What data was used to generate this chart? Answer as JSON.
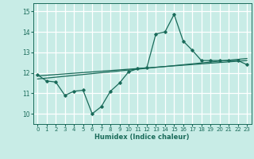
{
  "xlabel": "Humidex (Indice chaleur)",
  "xlim": [
    -0.5,
    23.5
  ],
  "ylim": [
    9.5,
    15.4
  ],
  "yticks": [
    10,
    11,
    12,
    13,
    14,
    15
  ],
  "xticks": [
    0,
    1,
    2,
    3,
    4,
    5,
    6,
    7,
    8,
    9,
    10,
    11,
    12,
    13,
    14,
    15,
    16,
    17,
    18,
    19,
    20,
    21,
    22,
    23
  ],
  "bg_color": "#c8ece6",
  "grid_color": "#ffffff",
  "line_color": "#1a6b5a",
  "line1_x": [
    0,
    1,
    2,
    3,
    4,
    5,
    6,
    7,
    8,
    9,
    10,
    11,
    12,
    13,
    14,
    15,
    16,
    17,
    18,
    19,
    20,
    21,
    22,
    23
  ],
  "line1_y": [
    11.9,
    11.6,
    11.55,
    10.9,
    11.1,
    11.15,
    10.0,
    10.35,
    11.1,
    11.5,
    12.05,
    12.2,
    12.25,
    13.9,
    14.0,
    14.85,
    13.55,
    13.1,
    12.6,
    12.6,
    12.6,
    12.6,
    12.6,
    12.4
  ],
  "line2_x": [
    0,
    23
  ],
  "line2_y": [
    11.85,
    12.6
  ],
  "line3_x": [
    0,
    23
  ],
  "line3_y": [
    11.7,
    12.7
  ]
}
